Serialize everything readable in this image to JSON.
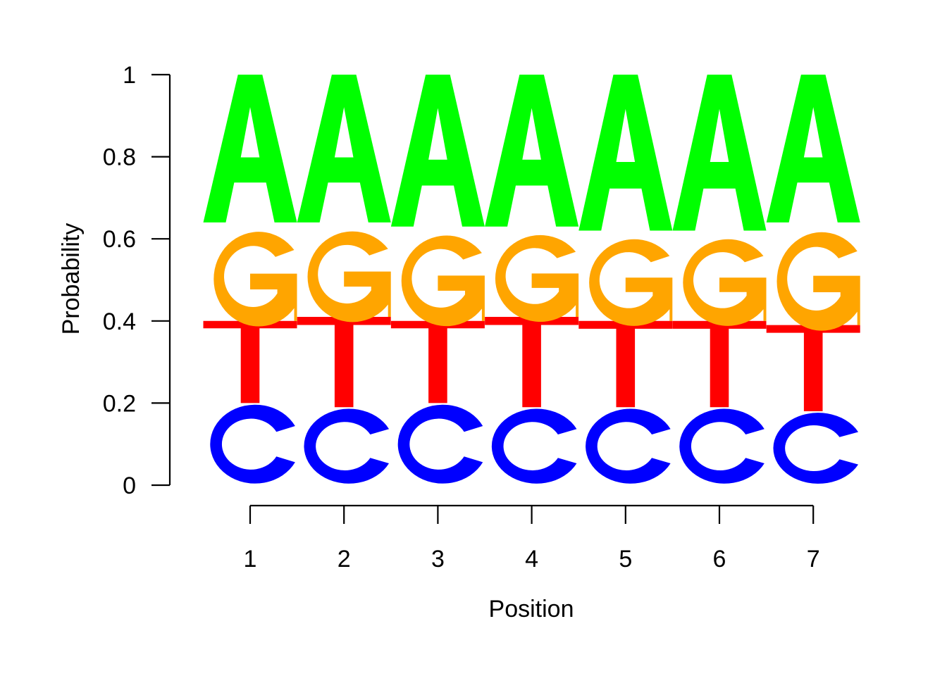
{
  "chart_data": {
    "type": "sequence-logo",
    "xlabel": "Position",
    "ylabel": "Probability",
    "ylim": [
      0,
      1
    ],
    "yticks": [
      "0",
      "0.2",
      "0.4",
      "0.6",
      "0.8",
      "1"
    ],
    "yticks_values": [
      0,
      0.2,
      0.4,
      0.6,
      0.8,
      1
    ],
    "positions": [
      "1",
      "2",
      "3",
      "4",
      "5",
      "6",
      "7"
    ],
    "stack_order_bottom_to_top": [
      "C",
      "T",
      "G",
      "A"
    ],
    "letters": [
      {
        "letter": "C",
        "color": "#0000FF",
        "values": [
          0.2,
          0.19,
          0.2,
          0.19,
          0.19,
          0.19,
          0.18
        ]
      },
      {
        "letter": "T",
        "color": "#FF0000",
        "values": [
          0.2,
          0.22,
          0.2,
          0.22,
          0.21,
          0.21,
          0.21
        ]
      },
      {
        "letter": "G",
        "color": "#FFA500",
        "values": [
          0.24,
          0.23,
          0.23,
          0.22,
          0.22,
          0.22,
          0.25
        ]
      },
      {
        "letter": "A",
        "color": "#00FF00",
        "values": [
          0.36,
          0.36,
          0.37,
          0.37,
          0.38,
          0.38,
          0.36
        ]
      }
    ]
  }
}
